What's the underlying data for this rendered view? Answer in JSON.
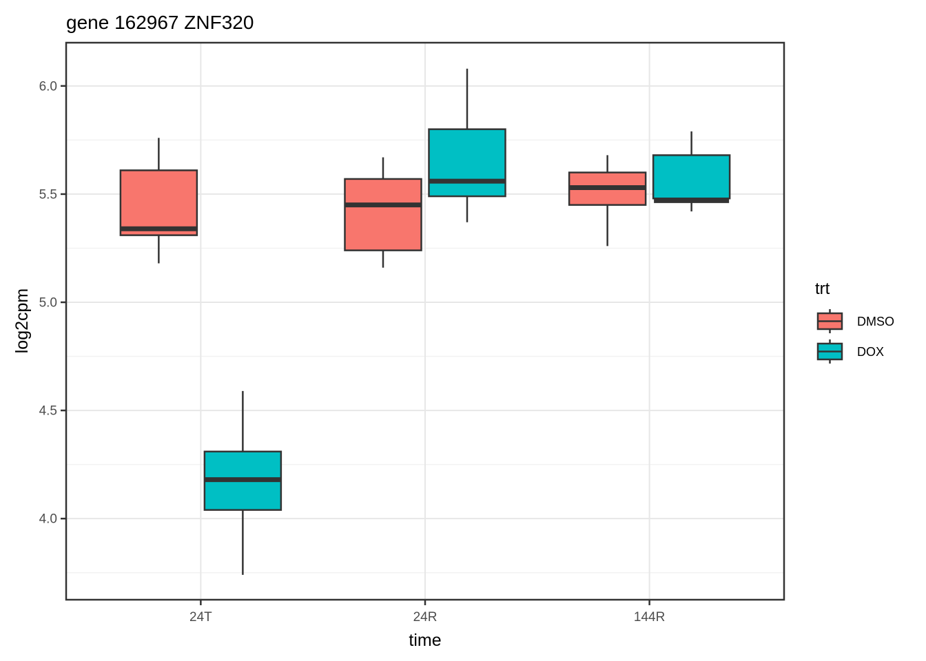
{
  "title": "gene 162967 ZNF320",
  "legend": {
    "title": "trt",
    "entries": [
      {
        "label": "DMSO",
        "color": "#F8766D"
      },
      {
        "label": "DOX",
        "color": "#00BFC4"
      }
    ]
  },
  "colors": {
    "box_outline": "#333333",
    "axis_text": "#4D4D4D",
    "text": "#000000",
    "grid_major": "#E7E7E7",
    "grid_minor": "#F2F2F2",
    "panel_bg": "#FFFFFF",
    "figure_bg": "#FFFFFF"
  },
  "chart_data": {
    "type": "boxplot",
    "title": "gene 162967 ZNF320",
    "xlabel": "time",
    "ylabel": "log2cpm",
    "categories": [
      "24T",
      "24R",
      "144R"
    ],
    "y_ticks": [
      4.0,
      4.5,
      5.0,
      5.5,
      6.0
    ],
    "y_tick_labels": [
      "4.0",
      "4.5",
      "5.0",
      "5.5",
      "6.0"
    ],
    "y_minor_ticks": [
      3.75,
      4.25,
      4.75,
      5.25,
      5.75
    ],
    "ylim": [
      3.625,
      6.2
    ],
    "grid": {
      "horizontal": "major+minor",
      "vertical": "major at categories"
    },
    "legend_position": "right",
    "series": [
      {
        "name": "DMSO",
        "color": "#F8766D",
        "boxes": [
          {
            "category": "24T",
            "min": 5.18,
            "q1": 5.31,
            "median": 5.34,
            "q3": 5.61,
            "max": 5.76
          },
          {
            "category": "24R",
            "min": 5.16,
            "q1": 5.24,
            "median": 5.45,
            "q3": 5.57,
            "max": 5.67
          },
          {
            "category": "144R",
            "min": 5.26,
            "q1": 5.45,
            "median": 5.53,
            "q3": 5.6,
            "max": 5.68
          }
        ]
      },
      {
        "name": "DOX",
        "color": "#00BFC4",
        "boxes": [
          {
            "category": "24T",
            "min": 3.74,
            "q1": 4.04,
            "median": 4.18,
            "q3": 4.31,
            "max": 4.59
          },
          {
            "category": "24R",
            "min": 5.37,
            "q1": 5.49,
            "median": 5.56,
            "q3": 5.8,
            "max": 6.08
          },
          {
            "category": "144R",
            "min": 5.42,
            "q1": 5.48,
            "median": 5.47,
            "q3": 5.68,
            "max": 5.79
          }
        ]
      }
    ]
  }
}
